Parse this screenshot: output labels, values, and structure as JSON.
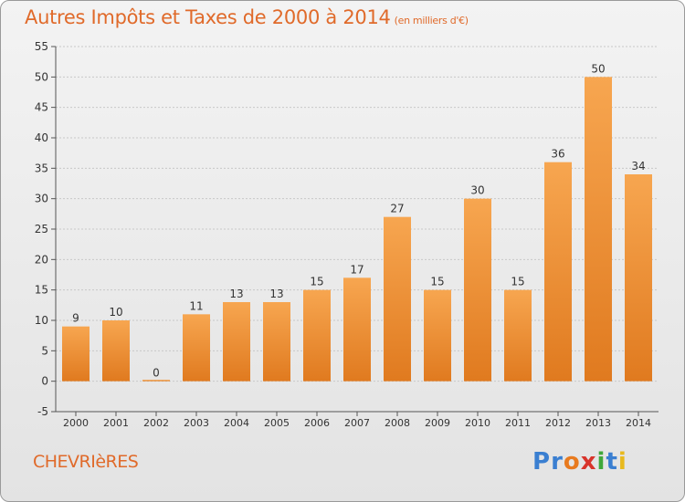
{
  "title": "Autres Impôts et Taxes de 2000 à 2014",
  "subtitle": "(en milliers d'€)",
  "commune": "CHEVRIèRES",
  "logo": {
    "text": "Proxiti",
    "colors": [
      "#3a7fd1",
      "#3a7fd1",
      "#e87a1e",
      "#d8342b",
      "#3fa83a",
      "#3a7fd1",
      "#e8b91e"
    ]
  },
  "colors": {
    "bar_light": "#f7a650",
    "bar_dark": "#e07a1f",
    "title": "#e06a2a",
    "grid": "#c8c8c8"
  },
  "chart_data": {
    "type": "bar",
    "categories": [
      "2000",
      "2001",
      "2002",
      "2003",
      "2004",
      "2005",
      "2006",
      "2007",
      "2008",
      "2009",
      "2010",
      "2011",
      "2012",
      "2013",
      "2014"
    ],
    "values": [
      9,
      10,
      0,
      11,
      13,
      13,
      15,
      17,
      27,
      15,
      30,
      15,
      36,
      50,
      34
    ],
    "ylim": [
      -5,
      55
    ],
    "yticks": [
      -5,
      0,
      5,
      10,
      15,
      20,
      25,
      30,
      35,
      40,
      45,
      50,
      55
    ],
    "grid": true,
    "title": "Autres Impôts et Taxes de 2000 à 2014",
    "subtitle": "(en milliers d'€)",
    "xlabel": "",
    "ylabel": ""
  }
}
